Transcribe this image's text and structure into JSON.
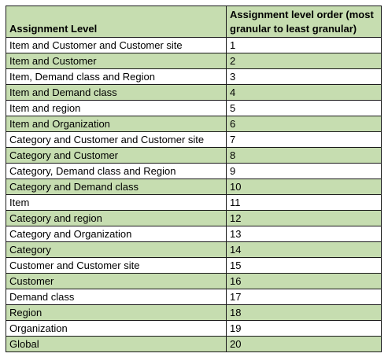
{
  "table": {
    "headers": [
      "Assignment Level",
      "Assignment level order (most granular to least granular)"
    ],
    "rows": [
      [
        "Item and Customer and Customer site",
        "1"
      ],
      [
        "Item and Customer",
        "2"
      ],
      [
        "Item, Demand class and Region",
        "3"
      ],
      [
        "Item and Demand class",
        "4"
      ],
      [
        "Item and region",
        "5"
      ],
      [
        "Item and Organization",
        "6"
      ],
      [
        "Category and Customer and Customer site",
        "7"
      ],
      [
        "Category and Customer",
        "8"
      ],
      [
        "Category, Demand class and Region",
        "9"
      ],
      [
        "Category and Demand class",
        "10"
      ],
      [
        "Item",
        "11"
      ],
      [
        "Category and region",
        "12"
      ],
      [
        "Category and Organization",
        "13"
      ],
      [
        "Category",
        "14"
      ],
      [
        "Customer and Customer site",
        "15"
      ],
      [
        "Customer",
        "16"
      ],
      [
        "Demand class",
        "17"
      ],
      [
        "Region",
        "18"
      ],
      [
        "Organization",
        "19"
      ],
      [
        "Global",
        "20"
      ]
    ]
  },
  "colors": {
    "shade": "#c6ddb0",
    "plain": "#ffffff",
    "border": "#1a1a1a"
  }
}
